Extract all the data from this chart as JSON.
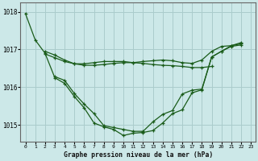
{
  "title": "Graphe pression niveau de la mer (hPa)",
  "bg_color": "#cce8e8",
  "grid_color": "#aacccc",
  "line_color": "#1a5c1a",
  "xlim": [
    -0.5,
    23.5
  ],
  "ylim": [
    1014.55,
    1018.25
  ],
  "yticks": [
    1015,
    1016,
    1017,
    1018
  ],
  "xticks": [
    0,
    1,
    2,
    3,
    4,
    5,
    6,
    7,
    8,
    9,
    10,
    11,
    12,
    13,
    14,
    15,
    16,
    17,
    18,
    19,
    20,
    21,
    22,
    23
  ],
  "series": [
    {
      "x": [
        0,
        1,
        2,
        3,
        4,
        5,
        6,
        7,
        8,
        9,
        10,
        11,
        12,
        13,
        14,
        15,
        16,
        17,
        18,
        19,
        20,
        21,
        22
      ],
      "y": [
        1017.95,
        1017.25,
        1016.9,
        1016.25,
        1016.1,
        1015.75,
        1015.45,
        1015.05,
        1014.95,
        1014.88,
        1014.72,
        1014.78,
        1014.8,
        1014.85,
        1015.05,
        1015.3,
        1015.4,
        1015.85,
        1015.93,
        1016.8,
        1016.95,
        1017.1,
        1017.15
      ]
    },
    {
      "x": [
        2,
        3,
        4,
        5,
        6,
        7,
        8,
        9,
        10,
        11,
        12,
        13,
        14,
        15,
        16,
        17,
        18,
        19
      ],
      "y": [
        1016.88,
        1016.78,
        1016.68,
        1016.62,
        1016.62,
        1016.65,
        1016.68,
        1016.68,
        1016.68,
        1016.65,
        1016.63,
        1016.6,
        1016.58,
        1016.57,
        1016.55,
        1016.52,
        1016.52,
        1016.55
      ]
    },
    {
      "x": [
        2,
        3,
        4,
        5,
        6,
        7,
        8,
        9,
        10,
        11,
        12,
        13,
        14,
        15,
        16,
        17,
        18,
        19,
        20,
        21,
        22
      ],
      "y": [
        1016.95,
        1016.85,
        1016.72,
        1016.62,
        1016.58,
        1016.58,
        1016.6,
        1016.63,
        1016.65,
        1016.65,
        1016.68,
        1016.7,
        1016.72,
        1016.7,
        1016.65,
        1016.63,
        1016.72,
        1016.95,
        1017.08,
        1017.1,
        1017.18
      ]
    },
    {
      "x": [
        3,
        4,
        5,
        6,
        7,
        8,
        9,
        10,
        11,
        12,
        13,
        14,
        15,
        16,
        17,
        18,
        19,
        20,
        21,
        22
      ],
      "y": [
        1016.28,
        1016.18,
        1015.83,
        1015.55,
        1015.3,
        1014.98,
        1014.93,
        1014.88,
        1014.83,
        1014.83,
        1015.08,
        1015.28,
        1015.38,
        1015.82,
        1015.92,
        1015.95,
        1016.8,
        1016.95,
        1017.08,
        1017.12
      ]
    }
  ]
}
